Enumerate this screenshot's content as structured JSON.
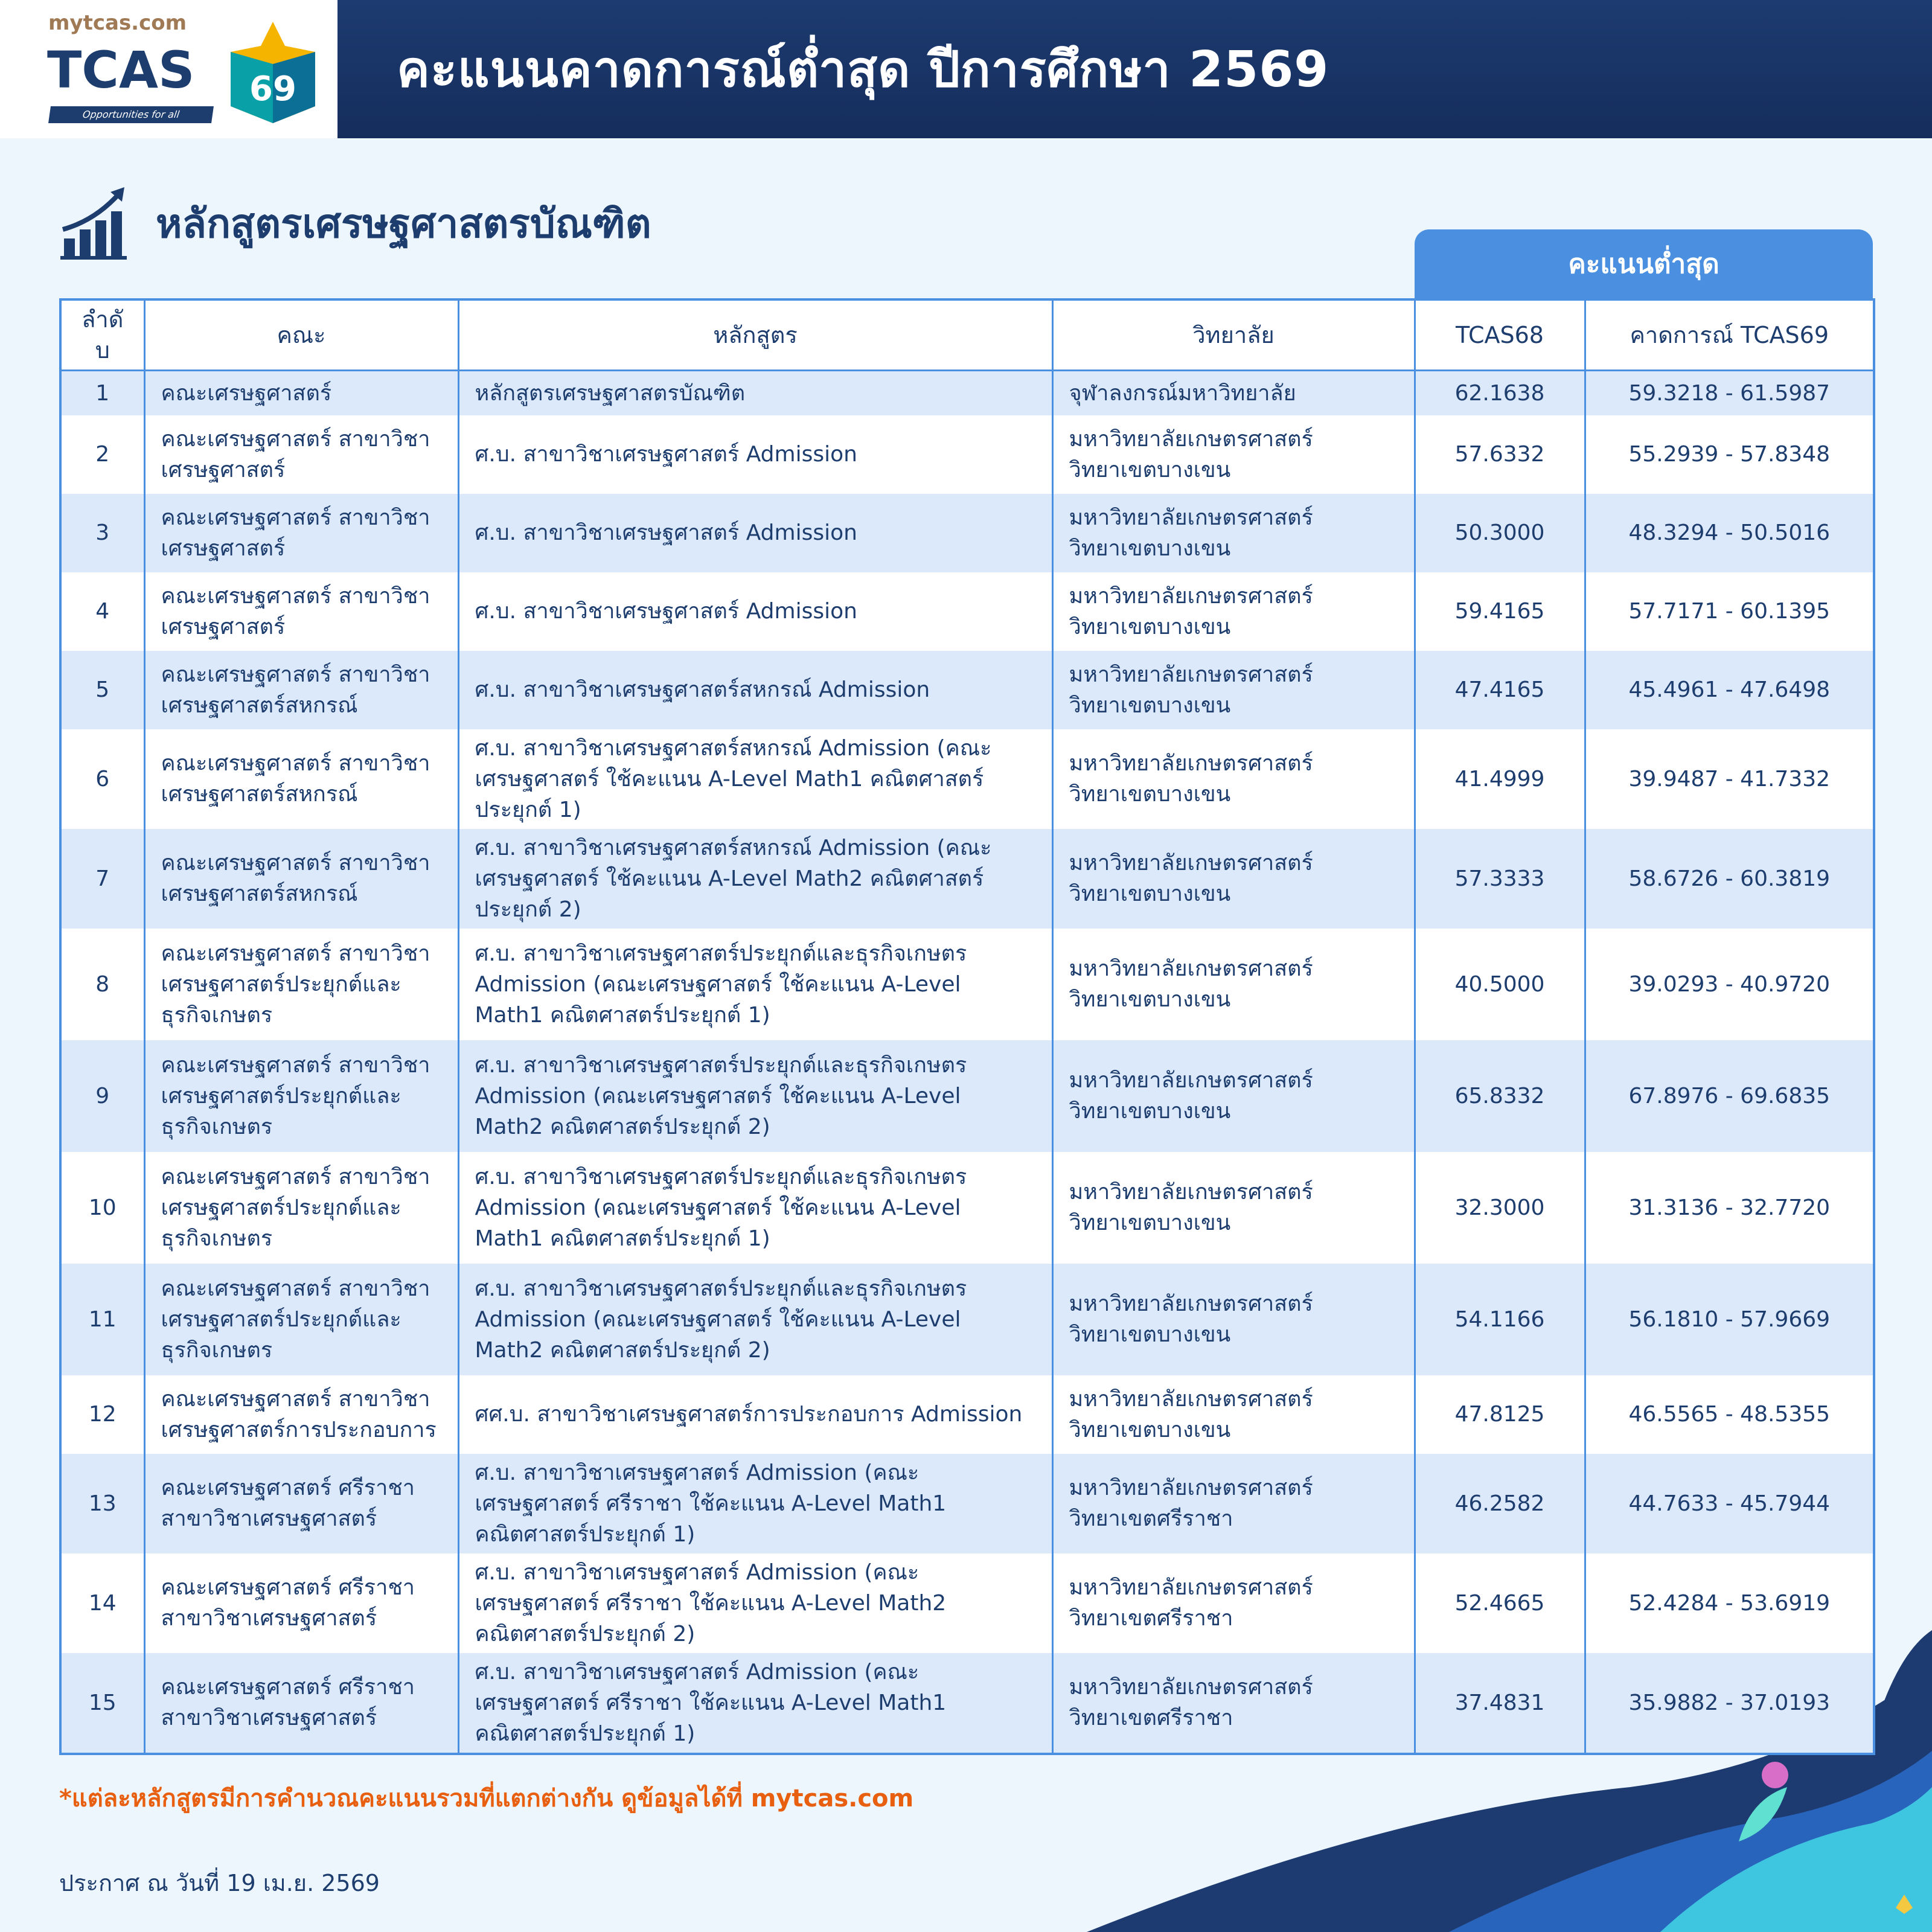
{
  "header": {
    "site": "mytcas.com",
    "brand": "TCAS",
    "year_badge": "69",
    "tagline": "Opportunities for all",
    "title": "คะแนนคาดการณ์ต่ำสุด ปีการศึกษา 2569"
  },
  "section": {
    "title": "หลักสูตรเศรษฐศาสตรบัณฑิต",
    "icon": "growth-chart-icon"
  },
  "table": {
    "group_header": "คะแนนต่ำสุด",
    "columns": [
      "ลำดับ",
      "คณะ",
      "หลักสูตร",
      "วิทยาลัย",
      "TCAS68",
      "คาดการณ์ TCAS69"
    ],
    "rows": [
      [
        "1",
        "คณะเศรษฐศาสตร์",
        "หลักสูตรเศรษฐศาสตรบัณฑิต",
        "จุฬาลงกรณ์มหาวิทยาลัย",
        "62.1638",
        "59.3218 - 61.5987"
      ],
      [
        "2",
        "คณะเศรษฐศาสตร์ สาขาวิชาเศรษฐศาสตร์",
        "ศ.บ. สาขาวิชาเศรษฐศาสตร์ Admission",
        "มหาวิทยาลัยเกษตรศาสตร์ วิทยาเขตบางเขน",
        "57.6332",
        "55.2939 - 57.8348"
      ],
      [
        "3",
        "คณะเศรษฐศาสตร์ สาขาวิชาเศรษฐศาสตร์",
        "ศ.บ. สาขาวิชาเศรษฐศาสตร์ Admission",
        "มหาวิทยาลัยเกษตรศาสตร์ วิทยาเขตบางเขน",
        "50.3000",
        "48.3294 - 50.5016"
      ],
      [
        "4",
        "คณะเศรษฐศาสตร์ สาขาวิชาเศรษฐศาสตร์",
        "ศ.บ. สาขาวิชาเศรษฐศาสตร์ Admission",
        "มหาวิทยาลัยเกษตรศาสตร์ วิทยาเขตบางเขน",
        "59.4165",
        "57.7171 - 60.1395"
      ],
      [
        "5",
        "คณะเศรษฐศาสตร์ สาขาวิชาเศรษฐศาสตร์สหกรณ์",
        "ศ.บ. สาขาวิชาเศรษฐศาสตร์สหกรณ์ Admission",
        "มหาวิทยาลัยเกษตรศาสตร์ วิทยาเขตบางเขน",
        "47.4165",
        "45.4961 - 47.6498"
      ],
      [
        "6",
        "คณะเศรษฐศาสตร์ สาขาวิชาเศรษฐศาสตร์สหกรณ์",
        "ศ.บ. สาขาวิชาเศรษฐศาสตร์สหกรณ์ Admission (คณะเศรษฐศาสตร์ ใช้คะแนน A-Level Math1 คณิตศาสตร์ประยุกต์ 1)",
        "มหาวิทยาลัยเกษตรศาสตร์ วิทยาเขตบางเขน",
        "41.4999",
        "39.9487 - 41.7332"
      ],
      [
        "7",
        "คณะเศรษฐศาสตร์ สาขาวิชาเศรษฐศาสตร์สหกรณ์",
        "ศ.บ. สาขาวิชาเศรษฐศาสตร์สหกรณ์ Admission (คณะเศรษฐศาสตร์ ใช้คะแนน A-Level Math2 คณิตศาสตร์ประยุกต์ 2)",
        "มหาวิทยาลัยเกษตรศาสตร์ วิทยาเขตบางเขน",
        "57.3333",
        "58.6726 - 60.3819"
      ],
      [
        "8",
        "คณะเศรษฐศาสตร์ สาขาวิชาเศรษฐศาสตร์ประยุกต์และธุรกิจเกษตร",
        "ศ.บ. สาขาวิชาเศรษฐศาสตร์ประยุกต์และธุรกิจเกษตร Admission (คณะเศรษฐศาสตร์ ใช้คะแนน A-Level Math1 คณิตศาสตร์ประยุกต์ 1)",
        "มหาวิทยาลัยเกษตรศาสตร์ วิทยาเขตบางเขน",
        "40.5000",
        "39.0293 - 40.9720"
      ],
      [
        "9",
        "คณะเศรษฐศาสตร์ สาขาวิชาเศรษฐศาสตร์ประยุกต์และธุรกิจเกษตร",
        "ศ.บ. สาขาวิชาเศรษฐศาสตร์ประยุกต์และธุรกิจเกษตร Admission (คณะเศรษฐศาสตร์ ใช้คะแนน A-Level Math2 คณิตศาสตร์ประยุกต์ 2)",
        "มหาวิทยาลัยเกษตรศาสตร์ วิทยาเขตบางเขน",
        "65.8332",
        "67.8976 - 69.6835"
      ],
      [
        "10",
        "คณะเศรษฐศาสตร์ สาขาวิชาเศรษฐศาสตร์ประยุกต์และธุรกิจเกษตร",
        "ศ.บ. สาขาวิชาเศรษฐศาสตร์ประยุกต์และธุรกิจเกษตร Admission (คณะเศรษฐศาสตร์ ใช้คะแนน A-Level Math1 คณิตศาสตร์ประยุกต์ 1)",
        "มหาวิทยาลัยเกษตรศาสตร์ วิทยาเขตบางเขน",
        "32.3000",
        "31.3136 - 32.7720"
      ],
      [
        "11",
        "คณะเศรษฐศาสตร์ สาขาวิชาเศรษฐศาสตร์ประยุกต์และธุรกิจเกษตร",
        "ศ.บ. สาขาวิชาเศรษฐศาสตร์ประยุกต์และธุรกิจเกษตร Admission (คณะเศรษฐศาสตร์ ใช้คะแนน A-Level Math2 คณิตศาสตร์ประยุกต์ 2)",
        "มหาวิทยาลัยเกษตรศาสตร์ วิทยาเขตบางเขน",
        "54.1166",
        "56.1810 - 57.9669"
      ],
      [
        "12",
        "คณะเศรษฐศาสตร์ สาขาวิชาเศรษฐศาสตร์การประกอบการ",
        "ศศ.บ. สาขาวิชาเศรษฐศาสตร์การประกอบการ Admission",
        "มหาวิทยาลัยเกษตรศาสตร์ วิทยาเขตบางเขน",
        "47.8125",
        "46.5565 - 48.5355"
      ],
      [
        "13",
        "คณะเศรษฐศาสตร์ ศรีราชา สาขาวิชาเศรษฐศาสตร์",
        "ศ.บ. สาขาวิชาเศรษฐศาสตร์ Admission (คณะเศรษฐศาสตร์ ศรีราชา ใช้คะแนน A-Level Math1 คณิตศาสตร์ประยุกต์ 1)",
        "มหาวิทยาลัยเกษตรศาสตร์ วิทยาเขตศรีราชา",
        "46.2582",
        "44.7633 - 45.7944"
      ],
      [
        "14",
        "คณะเศรษฐศาสตร์ ศรีราชา สาขาวิชาเศรษฐศาสตร์",
        "ศ.บ. สาขาวิชาเศรษฐศาสตร์ Admission (คณะเศรษฐศาสตร์ ศรีราชา ใช้คะแนน A-Level Math2 คณิตศาสตร์ประยุกต์ 2)",
        "มหาวิทยาลัยเกษตรศาสตร์ วิทยาเขตศรีราชา",
        "52.4665",
        "52.4284 - 53.6919"
      ],
      [
        "15",
        "คณะเศรษฐศาสตร์ ศรีราชา สาขาวิชาเศรษฐศาสตร์",
        "ศ.บ. สาขาวิชาเศรษฐศาสตร์ Admission (คณะเศรษฐศาสตร์ ศรีราชา ใช้คะแนน A-Level Math1 คณิตศาสตร์ประยุกต์ 1)",
        "มหาวิทยาลัยเกษตรศาสตร์ วิทยาเขตศรีราชา",
        "37.4831",
        "35.9882 - 37.0193"
      ]
    ]
  },
  "footnote": "*แต่ละหลักสูตรมีการคำนวณคะแนนรวมที่แตกต่างกัน ดูข้อมูลได้ที่ mytcas.com",
  "announce_date": "ประกาศ ณ วันที่ 19 เม.ย. 2569",
  "colors": {
    "navy": "#1d3b70",
    "accent": "#4a8fe0",
    "row_alt": "#dce9fa",
    "note": "#e8600f"
  }
}
